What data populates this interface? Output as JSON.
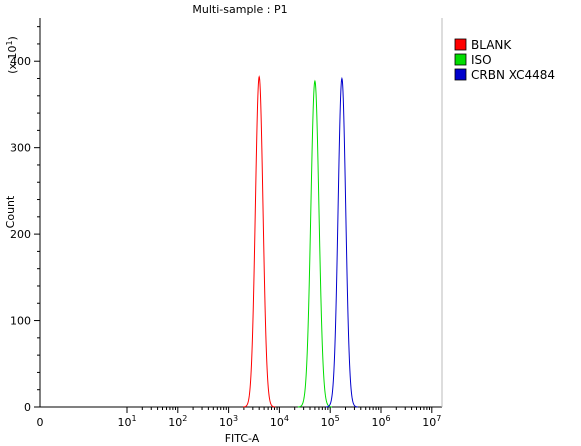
{
  "chart_data": {
    "type": "line",
    "title": "Multi-sample : P1",
    "xlabel": "FITC-A",
    "ylabel": "Count",
    "y_multiplier_base": "(x 10",
    "y_multiplier_exp": "1",
    "x_scale": "log",
    "x_ticks": [
      {
        "base": "0",
        "exp": "",
        "value": 0
      },
      {
        "base": "10",
        "exp": "1",
        "value": 10
      },
      {
        "base": "10",
        "exp": "2",
        "value": 100
      },
      {
        "base": "10",
        "exp": "3",
        "value": 1000
      },
      {
        "base": "10",
        "exp": "4",
        "value": 10000
      },
      {
        "base": "10",
        "exp": "5",
        "value": 100000
      },
      {
        "base": "10",
        "exp": "6",
        "value": 1000000
      },
      {
        "base": "10",
        "exp": "7",
        "value": 10000000
      }
    ],
    "y_ticks": [
      "0",
      "100",
      "200",
      "300",
      "400"
    ],
    "ylim": [
      0,
      450
    ],
    "legend_position": "right",
    "grid": false,
    "series": [
      {
        "name": "BLANK",
        "color": "#ff0000",
        "peak_x": 4000,
        "peak_y": 382,
        "width_decades": 0.075
      },
      {
        "name": "ISO",
        "color": "#00dd00",
        "peak_x": 50000,
        "peak_y": 377,
        "width_decades": 0.08
      },
      {
        "name": "CRBN XC4484",
        "color": "#0000cc",
        "peak_x": 170000,
        "peak_y": 380,
        "width_decades": 0.075
      }
    ]
  }
}
